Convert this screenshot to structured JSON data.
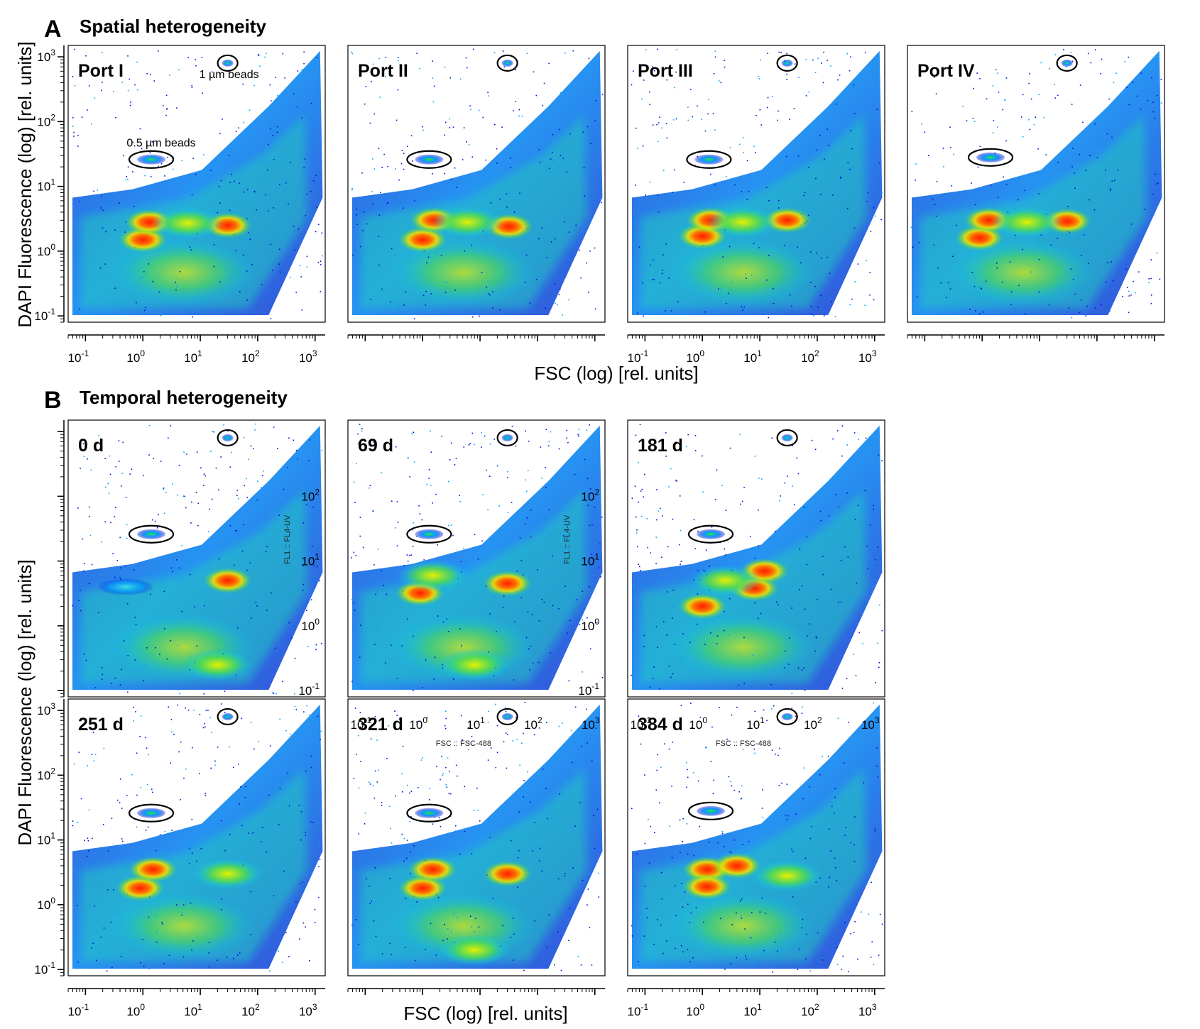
{
  "figure": {
    "panel_a": {
      "letter": "A",
      "title": "Spatial heterogeneity"
    },
    "panel_b": {
      "letter": "B",
      "title": "Temporal heterogeneity"
    },
    "x_title_a": "FSC (log) [rel. units]",
    "x_title_b": "FSC (log) [rel. units]",
    "y_title": "DAPI Fluorescence (log) [rel. units]",
    "tick_base": "10",
    "tick_exponents": [
      "-1",
      "0",
      "1",
      "2",
      "3"
    ],
    "annotations": {
      "small_beads": "0.5 µm beads",
      "large_beads": "1 µm beads"
    },
    "stray_labels": {
      "fl1": "FL1 :: FL4-UV",
      "fsc": "FSC :: FSC-488"
    }
  },
  "colors": {
    "density_low": "#0000cc",
    "density_mid_low": "#00c8ff",
    "density_mid": "#3cdc3c",
    "density_mid_high": "#f0f000",
    "density_high": "#ff1e00"
  },
  "chart_data": [
    {
      "type": "heatmap",
      "label": "Port I",
      "xlabel": "FSC (log) [rel. units]",
      "ylabel": "DAPI Fluorescence (log) [rel. units]",
      "x_scale": "log",
      "y_scale": "log",
      "xlim": [
        0.05,
        1500
      ],
      "ylim": [
        0.08,
        1500
      ],
      "gates": [
        {
          "name": "0.5 µm beads",
          "x": 1.4,
          "y": 26
        },
        {
          "name": "1 µm beads",
          "x": 30,
          "y": 800
        }
      ],
      "clusters": [
        {
          "x": 1.0,
          "y": 1.5,
          "intensity": "high"
        },
        {
          "x": 1.3,
          "y": 2.8,
          "intensity": "high"
        },
        {
          "x": 30,
          "y": 2.5,
          "intensity": "high"
        },
        {
          "x": 6,
          "y": 2.7,
          "intensity": "mid"
        }
      ]
    },
    {
      "type": "heatmap",
      "label": "Port II",
      "x_scale": "log",
      "y_scale": "log",
      "xlim": [
        0.05,
        1500
      ],
      "ylim": [
        0.08,
        1500
      ],
      "gates": [
        {
          "name": "0.5 µm beads",
          "x": 1.3,
          "y": 26
        },
        {
          "name": "1 µm beads",
          "x": 30,
          "y": 800
        }
      ],
      "clusters": [
        {
          "x": 1.0,
          "y": 1.5,
          "intensity": "high"
        },
        {
          "x": 1.6,
          "y": 3.0,
          "intensity": "high"
        },
        {
          "x": 32,
          "y": 2.4,
          "intensity": "high"
        },
        {
          "x": 6,
          "y": 2.8,
          "intensity": "mid"
        }
      ]
    },
    {
      "type": "heatmap",
      "label": "Port III",
      "x_scale": "log",
      "y_scale": "log",
      "xlim": [
        0.05,
        1500
      ],
      "ylim": [
        0.08,
        1500
      ],
      "gates": [
        {
          "name": "0.5 µm beads",
          "x": 1.3,
          "y": 26
        },
        {
          "name": "1 µm beads",
          "x": 30,
          "y": 800
        }
      ],
      "clusters": [
        {
          "x": 1.0,
          "y": 1.7,
          "intensity": "high"
        },
        {
          "x": 1.4,
          "y": 3.0,
          "intensity": "high"
        },
        {
          "x": 30,
          "y": 3.0,
          "intensity": "high"
        },
        {
          "x": 5,
          "y": 2.8,
          "intensity": "mid"
        }
      ]
    },
    {
      "type": "heatmap",
      "label": "Port IV",
      "x_scale": "log",
      "y_scale": "log",
      "xlim": [
        0.05,
        1500
      ],
      "ylim": [
        0.08,
        1500
      ],
      "gates": [
        {
          "name": "0.5 µm beads",
          "x": 1.4,
          "y": 28
        },
        {
          "name": "1 µm beads",
          "x": 30,
          "y": 800
        }
      ],
      "clusters": [
        {
          "x": 0.9,
          "y": 1.6,
          "intensity": "high"
        },
        {
          "x": 1.3,
          "y": 3.0,
          "intensity": "high"
        },
        {
          "x": 30,
          "y": 2.9,
          "intensity": "high"
        },
        {
          "x": 6,
          "y": 2.8,
          "intensity": "mid"
        }
      ]
    },
    {
      "type": "heatmap",
      "label": "0 d",
      "x_scale": "log",
      "y_scale": "log",
      "xlim": [
        0.05,
        1500
      ],
      "ylim": [
        0.08,
        1500
      ],
      "gates": [
        {
          "name": "0.5 µm beads",
          "x": 1.4,
          "y": 26
        },
        {
          "name": "1 µm beads",
          "x": 30,
          "y": 800
        }
      ],
      "clusters": [
        {
          "x": 30,
          "y": 5,
          "intensity": "high"
        },
        {
          "x": 20,
          "y": 0.25,
          "intensity": "mid"
        },
        {
          "x": 0.5,
          "y": 4,
          "intensity": "low"
        }
      ]
    },
    {
      "type": "heatmap",
      "label": "69 d",
      "x_scale": "log",
      "y_scale": "log",
      "xlim": [
        0.05,
        1500
      ],
      "ylim": [
        0.08,
        1500
      ],
      "gates": [
        {
          "name": "0.5 µm beads",
          "x": 1.3,
          "y": 26
        },
        {
          "name": "1 µm beads",
          "x": 30,
          "y": 800
        }
      ],
      "clusters": [
        {
          "x": 0.9,
          "y": 3.2,
          "intensity": "high"
        },
        {
          "x": 30,
          "y": 4.5,
          "intensity": "high"
        },
        {
          "x": 1.5,
          "y": 6,
          "intensity": "mid"
        },
        {
          "x": 8,
          "y": 0.25,
          "intensity": "mid"
        }
      ]
    },
    {
      "type": "heatmap",
      "label": "181 d",
      "x_scale": "log",
      "y_scale": "log",
      "xlim": [
        0.05,
        1500
      ],
      "ylim": [
        0.08,
        1500
      ],
      "gates": [
        {
          "name": "0.5 µm beads",
          "x": 1.4,
          "y": 26
        },
        {
          "name": "1 µm beads",
          "x": 30,
          "y": 800
        }
      ],
      "clusters": [
        {
          "x": 1.0,
          "y": 2.0,
          "intensity": "high"
        },
        {
          "x": 8,
          "y": 3.8,
          "intensity": "high"
        },
        {
          "x": 12,
          "y": 7,
          "intensity": "high"
        },
        {
          "x": 2.5,
          "y": 5,
          "intensity": "mid"
        }
      ]
    },
    {
      "type": "heatmap",
      "label": "251 d",
      "x_scale": "log",
      "y_scale": "log",
      "xlim": [
        0.05,
        1500
      ],
      "ylim": [
        0.08,
        1500
      ],
      "gates": [
        {
          "name": "0.5 µm beads",
          "x": 1.4,
          "y": 26
        },
        {
          "name": "1 µm beads",
          "x": 30,
          "y": 800
        }
      ],
      "clusters": [
        {
          "x": 0.9,
          "y": 1.8,
          "intensity": "high"
        },
        {
          "x": 1.5,
          "y": 3.5,
          "intensity": "high"
        },
        {
          "x": 30,
          "y": 3.0,
          "intensity": "mid"
        }
      ]
    },
    {
      "type": "heatmap",
      "label": "321 d",
      "x_scale": "log",
      "y_scale": "log",
      "xlim": [
        0.05,
        1500
      ],
      "ylim": [
        0.08,
        1500
      ],
      "gates": [
        {
          "name": "0.5 µm beads",
          "x": 1.3,
          "y": 26
        },
        {
          "name": "1 µm beads",
          "x": 30,
          "y": 800
        }
      ],
      "clusters": [
        {
          "x": 1.0,
          "y": 1.8,
          "intensity": "high"
        },
        {
          "x": 1.5,
          "y": 3.5,
          "intensity": "high"
        },
        {
          "x": 30,
          "y": 3.0,
          "intensity": "high"
        },
        {
          "x": 8,
          "y": 0.2,
          "intensity": "mid"
        }
      ]
    },
    {
      "type": "heatmap",
      "label": "384 d",
      "x_scale": "log",
      "y_scale": "log",
      "xlim": [
        0.05,
        1500
      ],
      "ylim": [
        0.08,
        1500
      ],
      "gates": [
        {
          "name": "0.5 µm beads",
          "x": 1.4,
          "y": 28
        },
        {
          "name": "1 µm beads",
          "x": 30,
          "y": 800
        }
      ],
      "clusters": [
        {
          "x": 1.2,
          "y": 3.5,
          "intensity": "high"
        },
        {
          "x": 1.2,
          "y": 1.9,
          "intensity": "high"
        },
        {
          "x": 4,
          "y": 4,
          "intensity": "high"
        },
        {
          "x": 30,
          "y": 2.8,
          "intensity": "mid"
        }
      ]
    }
  ]
}
